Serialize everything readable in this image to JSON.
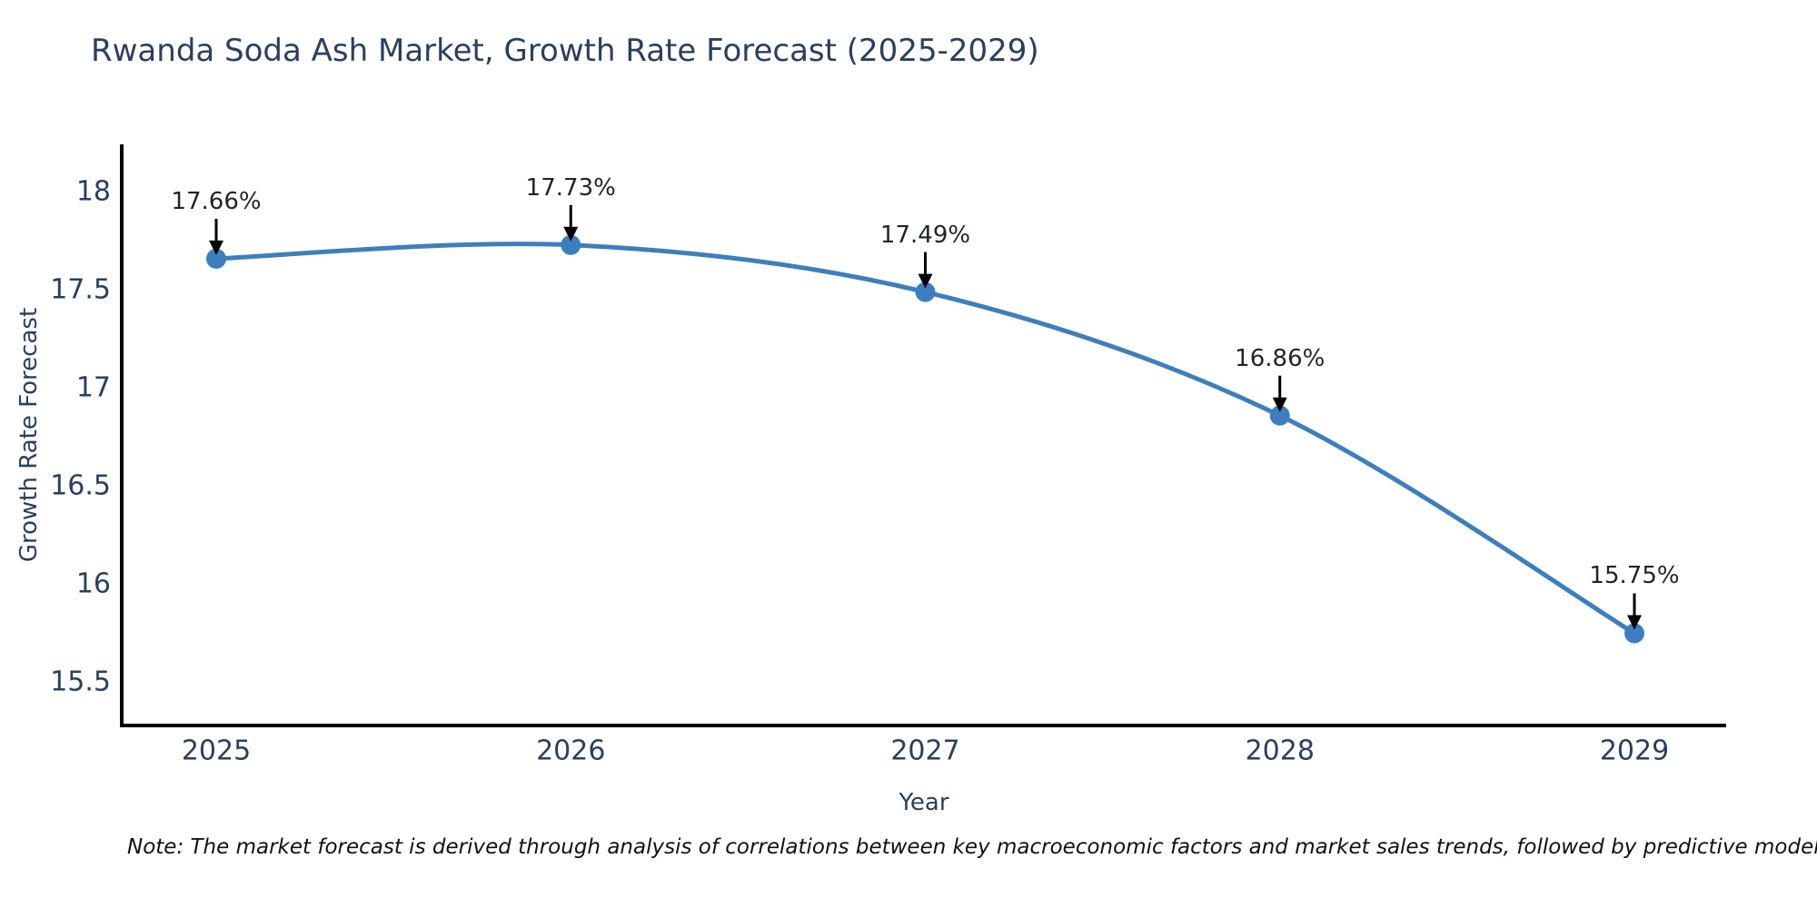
{
  "chart": {
    "title": "Rwanda Soda Ash Market, Growth Rate Forecast (2025-2029)",
    "xlabel": "Year",
    "ylabel": "Growth Rate Forecast",
    "note": "Note: The market forecast is derived through analysis of correlations between key macroeconomic factors and market sales trends, followed by predictive modeling to project future sal"
  },
  "chart_data": {
    "type": "line",
    "title": "Rwanda Soda Ash Market, Growth Rate Forecast (2025-2029)",
    "xlabel": "Year",
    "ylabel": "Growth Rate Forecast",
    "x": [
      2025,
      2026,
      2027,
      2028,
      2029
    ],
    "xtick_labels": [
      "2025",
      "2026",
      "2027",
      "2028",
      "2029"
    ],
    "values": [
      17.66,
      17.73,
      17.49,
      16.86,
      15.75
    ],
    "point_labels": [
      "17.66%",
      "17.73%",
      "17.49%",
      "16.86%",
      "15.75%"
    ],
    "yticks": [
      15.5,
      16,
      16.5,
      17,
      17.5,
      18
    ],
    "ytick_labels": [
      "15.5",
      "16",
      "16.5",
      "17",
      "17.5",
      "18"
    ],
    "ylim": [
      15.28,
      18.24
    ],
    "grid": false,
    "legend": null,
    "smooth_spline": true,
    "colors": {
      "line": "#3d7fbe",
      "marker": "#3d7fbe",
      "annotation_arrow": "#000000",
      "annotation_text": "#1f242b",
      "axis_spine": "#000000",
      "tick_text": "#2a3f5f",
      "title_text": "#2a3f5f",
      "note_text": "#111111",
      "background": "#ffffff"
    }
  }
}
